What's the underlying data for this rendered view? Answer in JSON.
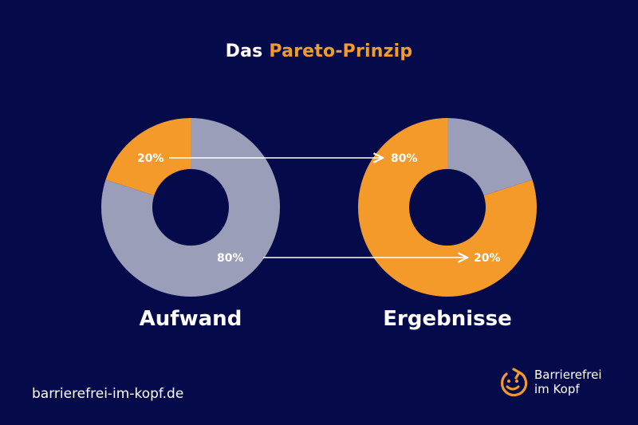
{
  "title": {
    "part1": "Das",
    "part2": "Pareto-Prinzip"
  },
  "colors": {
    "background": "#050b4a",
    "orange": "#f39a2b",
    "gray": "#9a9eb8",
    "text": "#ffffff"
  },
  "charts": [
    {
      "caption": "Aufwand",
      "segments": [
        {
          "value": 20,
          "label": "20%",
          "color": "orange"
        },
        {
          "value": 80,
          "label": "80%",
          "color": "gray"
        }
      ]
    },
    {
      "caption": "Ergebnisse",
      "segments": [
        {
          "value": 80,
          "label": "80%",
          "color": "orange"
        },
        {
          "value": 20,
          "label": "20%",
          "color": "gray"
        }
      ]
    }
  ],
  "footer": {
    "url": "barrierefrei-im-kopf.de"
  },
  "brand": {
    "line1": "Barrierefrei",
    "line2": "im Kopf",
    "logo_icon": "smiley-circle-arrow-icon"
  }
}
